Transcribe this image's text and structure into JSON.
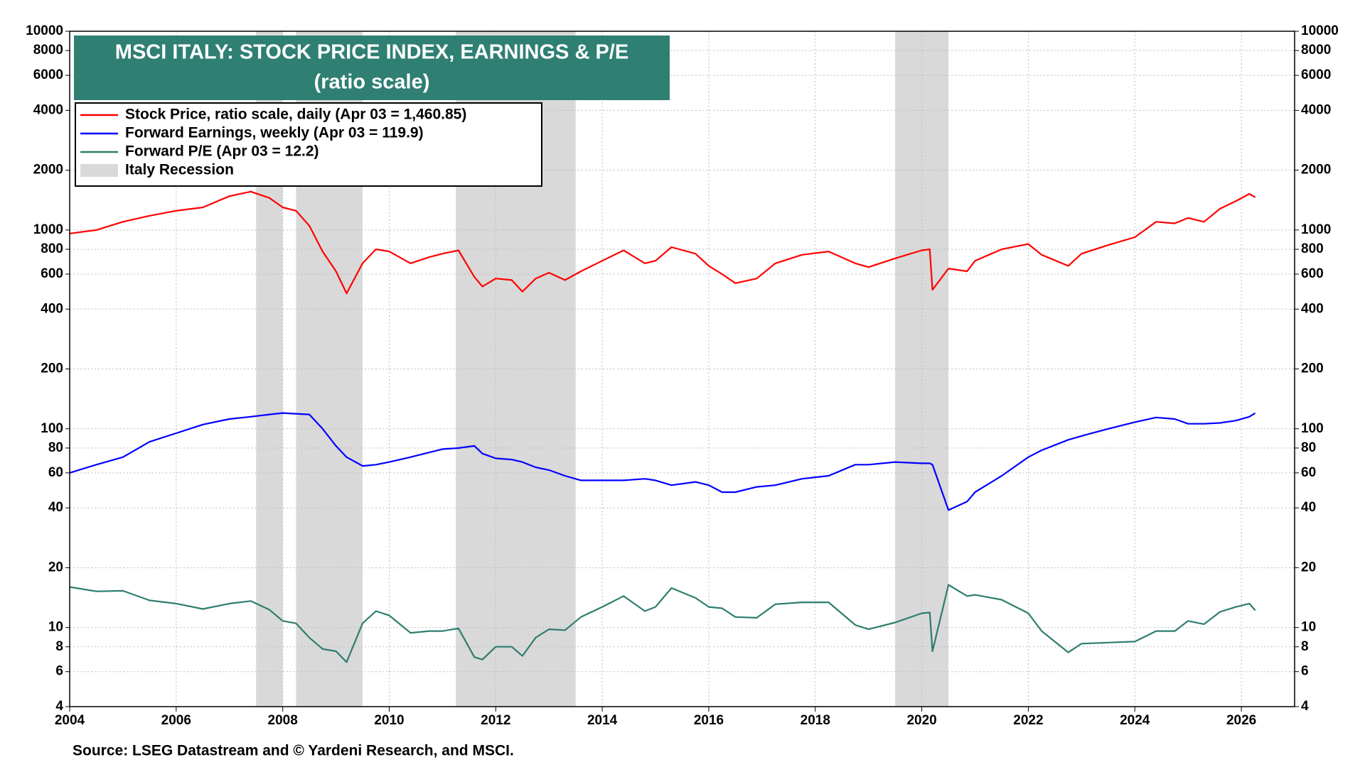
{
  "chart_data": {
    "type": "line",
    "title": "MSCI ITALY: STOCK PRICE INDEX, EARNINGS & P/E",
    "subtitle": "(ratio scale)",
    "source": "Source: LSEG Datastream and © Yardeni Research, and MSCI.",
    "log_scale": true,
    "grid": true,
    "xlim": [
      2004,
      2027
    ],
    "xticks": [
      2004,
      2006,
      2008,
      2010,
      2012,
      2014,
      2016,
      2018,
      2020,
      2022,
      2024,
      2026
    ],
    "ylim": [
      4,
      10000
    ],
    "yticks": [
      4,
      6,
      8,
      10,
      20,
      40,
      60,
      80,
      100,
      200,
      400,
      600,
      800,
      1000,
      2000,
      4000,
      6000,
      8000,
      10000
    ],
    "recession_label": "Italy Recession",
    "recession_color": "#d9d9d9",
    "recessions": [
      [
        2007.5,
        2008.0
      ],
      [
        2008.25,
        2009.5
      ],
      [
        2011.25,
        2013.5
      ],
      [
        2019.5,
        2020.5
      ]
    ],
    "x": [
      2004.0,
      2004.5,
      2005.0,
      2005.5,
      2006.0,
      2006.5,
      2007.0,
      2007.4,
      2007.75,
      2008.0,
      2008.25,
      2008.5,
      2008.75,
      2009.0,
      2009.2,
      2009.5,
      2009.75,
      2010.0,
      2010.4,
      2010.75,
      2011.0,
      2011.3,
      2011.6,
      2011.75,
      2012.0,
      2012.3,
      2012.5,
      2012.75,
      2013.0,
      2013.3,
      2013.6,
      2014.0,
      2014.4,
      2014.8,
      2015.0,
      2015.3,
      2015.75,
      2016.0,
      2016.25,
      2016.5,
      2016.9,
      2017.25,
      2017.75,
      2018.25,
      2018.75,
      2019.0,
      2019.5,
      2020.0,
      2020.15,
      2020.2,
      2020.5,
      2020.85,
      2021.0,
      2021.5,
      2022.0,
      2022.25,
      2022.75,
      2023.0,
      2023.5,
      2024.0,
      2024.4,
      2024.75,
      2025.0,
      2025.3,
      2025.6,
      2025.9,
      2026.15,
      2026.26
    ],
    "series": [
      {
        "name": "Stock Price, ratio scale, daily (Apr 03 = 1,460.85)",
        "color": "#ff0000",
        "values": [
          960,
          1000,
          1100,
          1180,
          1250,
          1300,
          1480,
          1560,
          1450,
          1300,
          1250,
          1050,
          780,
          620,
          480,
          680,
          800,
          780,
          680,
          730,
          760,
          790,
          580,
          520,
          570,
          560,
          490,
          570,
          610,
          560,
          620,
          700,
          790,
          680,
          700,
          820,
          760,
          660,
          600,
          540,
          570,
          680,
          750,
          780,
          680,
          650,
          720,
          790,
          800,
          500,
          640,
          620,
          700,
          800,
          850,
          750,
          660,
          760,
          840,
          920,
          1100,
          1080,
          1150,
          1100,
          1280,
          1400,
          1520,
          1460.85
        ]
      },
      {
        "name": "Forward Earnings, weekly (Apr 03 = 119.9)",
        "color": "#0000ff",
        "values": [
          60,
          66,
          72,
          86,
          95,
          105,
          112,
          115,
          118,
          120,
          119,
          118,
          100,
          82,
          72,
          65,
          66,
          68,
          72,
          76,
          79,
          80,
          82,
          75,
          71,
          70,
          68,
          64,
          62,
          58,
          55,
          55,
          55,
          56,
          55,
          52,
          54,
          52,
          48,
          48,
          51,
          52,
          56,
          58,
          66,
          66,
          68,
          67,
          67,
          66,
          39,
          43,
          48,
          58,
          72,
          78,
          88,
          92,
          100,
          108,
          114,
          112,
          106,
          106,
          107,
          110,
          115,
          119.9
        ]
      },
      {
        "name": "Forward P/E (Apr 03 = 12.2)",
        "color": "#2e7d6e",
        "values": [
          16,
          15.2,
          15.3,
          13.7,
          13.2,
          12.4,
          13.2,
          13.6,
          12.3,
          10.8,
          10.5,
          8.9,
          7.8,
          7.6,
          6.7,
          10.5,
          12.1,
          11.5,
          9.4,
          9.6,
          9.6,
          9.9,
          7.1,
          6.9,
          8.0,
          8.0,
          7.2,
          8.9,
          9.8,
          9.7,
          11.3,
          12.7,
          14.4,
          12.1,
          12.7,
          15.8,
          14.1,
          12.7,
          12.5,
          11.3,
          11.2,
          13.1,
          13.4,
          13.4,
          10.3,
          9.8,
          10.6,
          11.8,
          11.9,
          7.6,
          16.4,
          14.4,
          14.6,
          13.8,
          11.8,
          9.6,
          7.5,
          8.3,
          8.4,
          8.5,
          9.6,
          9.6,
          10.8,
          10.4,
          12.0,
          12.7,
          13.2,
          12.2
        ]
      }
    ]
  }
}
